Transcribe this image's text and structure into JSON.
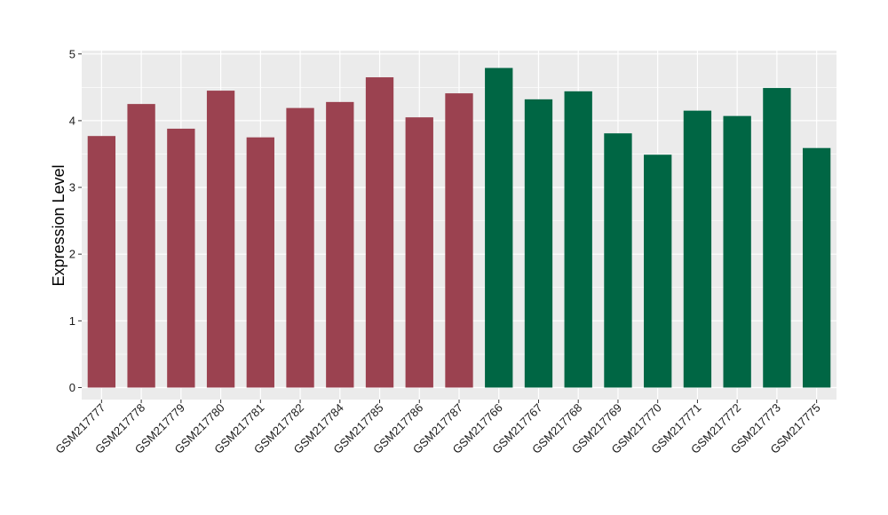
{
  "chart_data": {
    "type": "bar",
    "title": "",
    "xlabel": "",
    "ylabel": "Expression Level",
    "ylim": [
      -0.18,
      5.05
    ],
    "yticks": [
      0,
      1,
      2,
      3,
      4,
      5
    ],
    "grid": true,
    "legend": "none",
    "colors": {
      "group_a": "#9b4250",
      "group_b": "#006644",
      "panel": "#ebebeb",
      "grid": "#ffffff"
    },
    "categories": [
      "GSM217777",
      "GSM217778",
      "GSM217779",
      "GSM217780",
      "GSM217781",
      "GSM217782",
      "GSM217784",
      "GSM217785",
      "GSM217786",
      "GSM217787",
      "GSM217766",
      "GSM217767",
      "GSM217768",
      "GSM217769",
      "GSM217770",
      "GSM217771",
      "GSM217772",
      "GSM217773",
      "GSM217775"
    ],
    "values": [
      3.77,
      4.25,
      3.88,
      4.45,
      3.75,
      4.19,
      4.28,
      4.65,
      4.05,
      4.41,
      4.79,
      4.32,
      4.44,
      3.81,
      3.49,
      4.15,
      4.07,
      4.49,
      3.59
    ],
    "groups": [
      "a",
      "a",
      "a",
      "a",
      "a",
      "a",
      "a",
      "a",
      "a",
      "a",
      "b",
      "b",
      "b",
      "b",
      "b",
      "b",
      "b",
      "b",
      "b"
    ]
  }
}
